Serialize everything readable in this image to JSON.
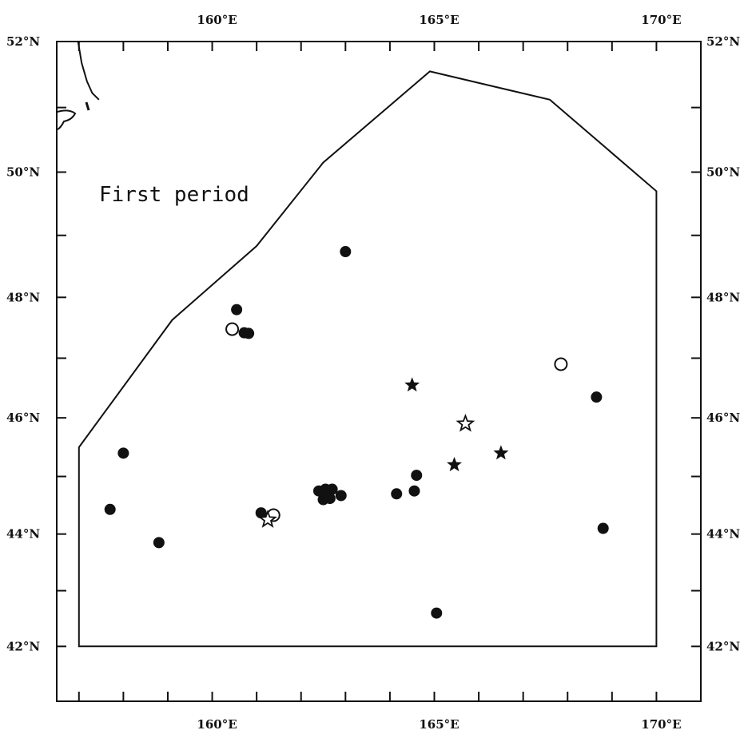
{
  "map": {
    "title": "First period",
    "projection": "mercator",
    "lon_range": [
      156.5,
      171.0
    ],
    "lat_range": [
      41.0,
      52.0
    ],
    "lon_labels_top": [
      {
        "lon": 160,
        "text": "160°E"
      },
      {
        "lon": 165,
        "text": "165°E"
      },
      {
        "lon": 170,
        "text": "170°E"
      }
    ],
    "lon_labels_bottom": [
      {
        "lon": 160,
        "text": "160°E"
      },
      {
        "lon": 165,
        "text": "165°E"
      },
      {
        "lon": 170,
        "text": "170°E"
      }
    ],
    "lat_labels_left": [
      {
        "lat": 52,
        "text": "52°N"
      },
      {
        "lat": 50,
        "text": "50°N"
      },
      {
        "lat": 48,
        "text": "48°N"
      },
      {
        "lat": 46,
        "text": "46°N"
      },
      {
        "lat": 44,
        "text": "44°N"
      },
      {
        "lat": 42,
        "text": "42°N"
      }
    ],
    "lat_labels_right": [
      {
        "lat": 52,
        "text": "52°N"
      },
      {
        "lat": 50,
        "text": "50°N"
      },
      {
        "lat": 48,
        "text": "48°N"
      },
      {
        "lat": 46,
        "text": "46°N"
      },
      {
        "lat": 44,
        "text": "44°N"
      },
      {
        "lat": 42,
        "text": "42°N"
      }
    ],
    "survey_area": [
      [
        157.0,
        42.0
      ],
      [
        157.0,
        45.5
      ],
      [
        159.1,
        47.63
      ],
      [
        161.0,
        48.83
      ],
      [
        162.5,
        50.15
      ],
      [
        164.9,
        51.55
      ],
      [
        167.6,
        51.12
      ],
      [
        170.0,
        49.7
      ],
      [
        170.0,
        42.0
      ]
    ],
    "coastline": [
      [
        156.98,
        52.0
      ],
      [
        157.06,
        51.68
      ],
      [
        157.18,
        51.4
      ],
      [
        157.3,
        51.22
      ],
      [
        157.45,
        51.12
      ]
    ],
    "stations": [
      {
        "symbol": "filled-circle",
        "lon": 163.0,
        "lat": 48.74
      },
      {
        "symbol": "filled-circle",
        "lon": 160.55,
        "lat": 47.8
      },
      {
        "symbol": "open-circle",
        "lon": 160.45,
        "lat": 47.48
      },
      {
        "symbol": "filled-circle",
        "lon": 160.72,
        "lat": 47.42
      },
      {
        "symbol": "filled-circle",
        "lon": 160.82,
        "lat": 47.41
      },
      {
        "symbol": "open-circle",
        "lon": 167.85,
        "lat": 46.9
      },
      {
        "symbol": "filled-circle",
        "lon": 168.65,
        "lat": 46.35
      },
      {
        "symbol": "filled-star",
        "lon": 164.5,
        "lat": 46.55
      },
      {
        "symbol": "open-star",
        "lon": 165.7,
        "lat": 45.9
      },
      {
        "symbol": "filled-star",
        "lon": 166.5,
        "lat": 45.4
      },
      {
        "symbol": "filled-star",
        "lon": 165.45,
        "lat": 45.2
      },
      {
        "symbol": "filled-circle",
        "lon": 158.0,
        "lat": 45.4
      },
      {
        "symbol": "filled-circle",
        "lon": 164.6,
        "lat": 45.02
      },
      {
        "symbol": "filled-circle",
        "lon": 162.4,
        "lat": 44.75
      },
      {
        "symbol": "filled-circle",
        "lon": 162.55,
        "lat": 44.78
      },
      {
        "symbol": "filled-circle",
        "lon": 162.7,
        "lat": 44.78
      },
      {
        "symbol": "filled-circle",
        "lon": 162.5,
        "lat": 44.6
      },
      {
        "symbol": "filled-circle",
        "lon": 162.65,
        "lat": 44.62
      },
      {
        "symbol": "filled-circle",
        "lon": 162.9,
        "lat": 44.67
      },
      {
        "symbol": "filled-circle",
        "lon": 164.15,
        "lat": 44.7
      },
      {
        "symbol": "filled-circle",
        "lon": 164.55,
        "lat": 44.75
      },
      {
        "symbol": "filled-circle",
        "lon": 157.7,
        "lat": 44.43
      },
      {
        "symbol": "filled-circle",
        "lon": 161.1,
        "lat": 44.37
      },
      {
        "symbol": "open-circle",
        "lon": 161.38,
        "lat": 44.33
      },
      {
        "symbol": "open-star",
        "lon": 161.25,
        "lat": 44.25
      },
      {
        "symbol": "filled-circle",
        "lon": 168.8,
        "lat": 44.1
      },
      {
        "symbol": "filled-circle",
        "lon": 158.8,
        "lat": 43.85
      },
      {
        "symbol": "filled-circle",
        "lon": 165.05,
        "lat": 42.6
      }
    ]
  }
}
